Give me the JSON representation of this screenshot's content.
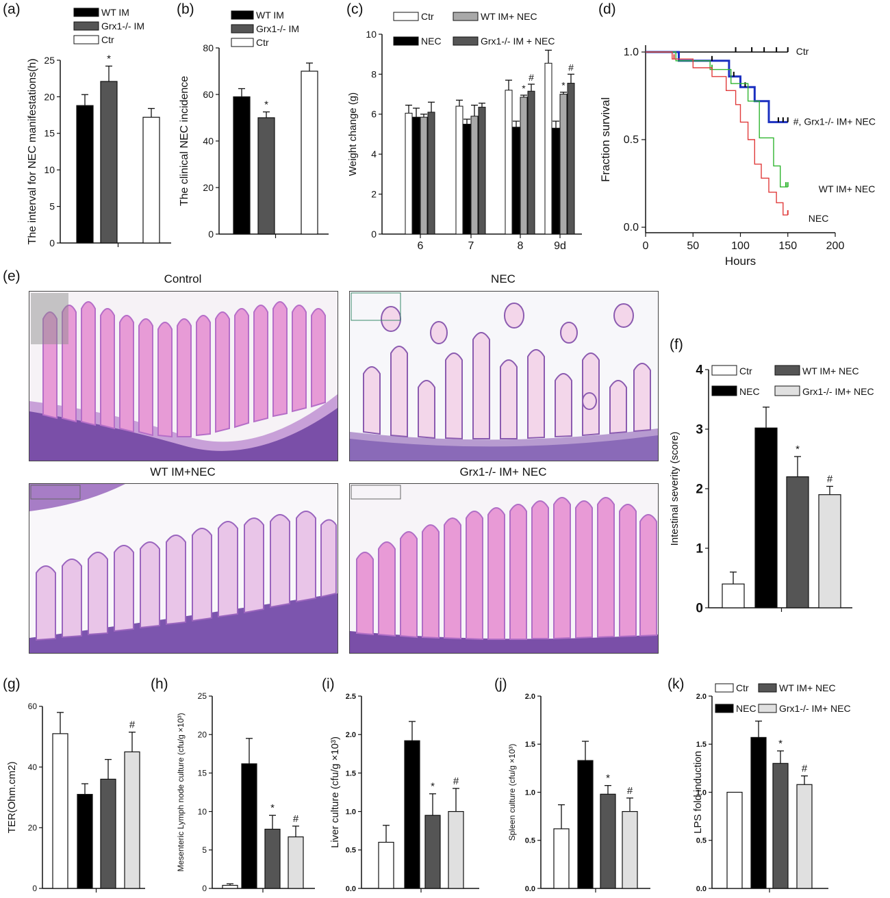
{
  "figure_panels": {
    "letters": [
      "(a)",
      "(b)",
      "(c)",
      "(d)",
      "(e)",
      "(f)",
      "(g)",
      "(h)",
      "(i)",
      "(j)",
      "(k)"
    ],
    "histology": [
      {
        "label": "Control"
      },
      {
        "label": "NEC"
      },
      {
        "label": "WT IM+NEC"
      },
      {
        "label": "Grx1-/- IM+ NEC"
      }
    ]
  },
  "colors": {
    "black": "#000000",
    "dark_gray": "#555555",
    "medium_gray": "#a9a9a9",
    "light_gray": "#e0e0e0",
    "white": "#ffffff",
    "survival_ctr": "#000000",
    "survival_grx": "#1a2fc0",
    "survival_wt": "#2fb52f",
    "survival_nec": "#e03b3b"
  },
  "chart_data": [
    {
      "id": "a",
      "type": "bar",
      "ylabel": "The  interval for NEC manifestations(h)",
      "ylim": [
        0,
        25
      ],
      "yticks": [
        "0",
        "5",
        "10",
        "15",
        "20",
        "25"
      ],
      "legend": [
        "WT IM",
        "Grx1-/- IM",
        "Ctr"
      ],
      "bars": [
        {
          "name": "WT IM",
          "value": 18.8,
          "err": 1.5,
          "color": "black"
        },
        {
          "name": "Grx1-/- IM",
          "value": 22.1,
          "err": 2.1,
          "color": "dark_gray",
          "mark": "*"
        },
        {
          "name": "Ctr",
          "value": 17.2,
          "err": 1.2,
          "color": "white"
        }
      ]
    },
    {
      "id": "b",
      "type": "bar",
      "ylabel": "The clinical NEC incidence",
      "ylim": [
        0,
        80
      ],
      "yticks": [
        "0",
        "20",
        "40",
        "60",
        "80"
      ],
      "legend": [
        "WT IM",
        "Grx1-/- IM",
        "Ctr"
      ],
      "bars": [
        {
          "name": "WT IM",
          "value": 59,
          "err": 3.5,
          "color": "black"
        },
        {
          "name": "Grx1-/- IM",
          "value": 50,
          "err": 2.5,
          "color": "dark_gray",
          "mark": "*"
        },
        {
          "name": "Ctr",
          "value": 70,
          "err": 3.5,
          "color": "white"
        }
      ]
    },
    {
      "id": "c",
      "type": "bar",
      "ylabel": "Weight change (g)",
      "ylim": [
        0,
        10
      ],
      "yticks": [
        "0",
        "2",
        "4",
        "6",
        "8",
        "10"
      ],
      "categories": [
        "6",
        "7",
        "8",
        "9d"
      ],
      "legend": [
        "Ctr",
        "WT IM+ NEC",
        "NEC",
        "Grx1-/- IM + NEC"
      ],
      "series": [
        {
          "name": "Ctr",
          "color": "white",
          "values": [
            6.05,
            6.4,
            7.2,
            8.55
          ],
          "errs": [
            0.4,
            0.3,
            0.5,
            0.65
          ]
        },
        {
          "name": "NEC",
          "color": "black",
          "values": [
            5.85,
            5.5,
            5.35,
            5.3
          ],
          "errs": [
            0.45,
            0.25,
            0.3,
            0.35
          ]
        },
        {
          "name": "WT IM+ NEC",
          "color": "medium_gray",
          "values": [
            5.85,
            5.9,
            6.85,
            7.0
          ],
          "errs": [
            0.15,
            0.55,
            0.1,
            0.1
          ],
          "marks": [
            "",
            "",
            "*",
            "*"
          ]
        },
        {
          "name": "Grx1-/- IM + NEC",
          "color": "dark_gray",
          "values": [
            6.1,
            6.35,
            7.15,
            7.55
          ],
          "errs": [
            0.5,
            0.2,
            0.35,
            0.45
          ],
          "marks": [
            "",
            "",
            "#",
            "#"
          ]
        }
      ]
    },
    {
      "id": "d",
      "type": "line",
      "xlabel": "Hours",
      "ylabel": "Fraction survival",
      "xlim": [
        0,
        200
      ],
      "ylim": [
        0,
        1
      ],
      "xticks": [
        "0",
        "50",
        "100",
        "150",
        "200"
      ],
      "yticks": [
        "0.0",
        "0.5",
        "1.0"
      ],
      "series": [
        {
          "name": "Ctr",
          "color": "survival_ctr",
          "points": [
            [
              0,
              1
            ],
            [
              150,
              1
            ]
          ],
          "censor": [
            95,
            112,
            125,
            138,
            150
          ]
        },
        {
          "name": "#, Grx1-/- IM+ NEC",
          "color": "survival_grx",
          "points": [
            [
              0,
              1
            ],
            [
              35,
              1
            ],
            [
              35,
              0.95
            ],
            [
              88,
              0.95
            ],
            [
              88,
              0.86
            ],
            [
              100,
              0.86
            ],
            [
              100,
              0.8
            ],
            [
              115,
              0.8
            ],
            [
              115,
              0.72
            ],
            [
              130,
              0.72
            ],
            [
              130,
              0.6
            ],
            [
              150,
              0.6
            ]
          ],
          "censor": [
            70,
            93,
            105,
            140,
            145,
            150
          ]
        },
        {
          "name": "WT IM+ NEC",
          "color": "survival_wt",
          "points": [
            [
              0,
              1
            ],
            [
              32,
              1
            ],
            [
              32,
              0.95
            ],
            [
              68,
              0.95
            ],
            [
              68,
              0.9
            ],
            [
              90,
              0.9
            ],
            [
              90,
              0.82
            ],
            [
              108,
              0.82
            ],
            [
              108,
              0.72
            ],
            [
              120,
              0.72
            ],
            [
              120,
              0.51
            ],
            [
              135,
              0.51
            ],
            [
              135,
              0.35
            ],
            [
              142,
              0.35
            ],
            [
              142,
              0.23
            ],
            [
              150,
              0.23
            ]
          ],
          "censor": [
            70,
            148,
            150
          ]
        },
        {
          "name": "NEC",
          "color": "survival_nec",
          "points": [
            [
              0,
              1
            ],
            [
              28,
              1
            ],
            [
              28,
              0.96
            ],
            [
              50,
              0.96
            ],
            [
              50,
              0.91
            ],
            [
              70,
              0.91
            ],
            [
              70,
              0.86
            ],
            [
              85,
              0.86
            ],
            [
              85,
              0.78
            ],
            [
              95,
              0.78
            ],
            [
              95,
              0.7
            ],
            [
              100,
              0.7
            ],
            [
              100,
              0.6
            ],
            [
              108,
              0.6
            ],
            [
              108,
              0.5
            ],
            [
              115,
              0.5
            ],
            [
              115,
              0.36
            ],
            [
              122,
              0.36
            ],
            [
              122,
              0.28
            ],
            [
              130,
              0.28
            ],
            [
              130,
              0.2
            ],
            [
              138,
              0.2
            ],
            [
              138,
              0.14
            ],
            [
              145,
              0.14
            ],
            [
              145,
              0.07
            ],
            [
              150,
              0.07
            ]
          ],
          "censor": [
            30,
            150
          ]
        }
      ]
    },
    {
      "id": "f",
      "type": "bar",
      "ylabel": "Intestinal severity (score)",
      "ylim": [
        0,
        4
      ],
      "yticks": [
        "0",
        "1",
        "2",
        "3",
        "4"
      ],
      "legend": [
        "Ctr",
        "WT IM+ NEC",
        "NEC",
        "Grx1-/- IM+ NEC"
      ],
      "bars": [
        {
          "name": "Ctr",
          "value": 0.4,
          "err": 0.2,
          "color": "white"
        },
        {
          "name": "NEC",
          "value": 3.02,
          "err": 0.35,
          "color": "black"
        },
        {
          "name": "WT IM+ NEC",
          "value": 2.2,
          "err": 0.34,
          "color": "dark_gray",
          "mark": "*"
        },
        {
          "name": "Grx1-/- IM+ NEC",
          "value": 1.9,
          "err": 0.14,
          "color": "light_gray",
          "mark": "#"
        }
      ]
    },
    {
      "id": "g",
      "type": "bar",
      "ylabel": "TER(Ohm.cm2)",
      "ylim": [
        0,
        60
      ],
      "yticks": [
        "0",
        "20",
        "40",
        "60"
      ],
      "bars": [
        {
          "name": "Ctr",
          "value": 51,
          "err": 7,
          "color": "white"
        },
        {
          "name": "NEC",
          "value": 31,
          "err": 3.5,
          "color": "black"
        },
        {
          "name": "WT IM+ NEC",
          "value": 36,
          "err": 6.5,
          "color": "dark_gray"
        },
        {
          "name": "Grx1-/- IM+ NEC",
          "value": 45,
          "err": 6.5,
          "color": "light_gray",
          "mark": "#"
        }
      ]
    },
    {
      "id": "h",
      "type": "bar",
      "ylabel": "Mesenteric Lymph node culture (cfu/g ×10³)",
      "ylim": [
        0,
        25
      ],
      "yticks": [
        "0",
        "5",
        "10",
        "15",
        "20",
        "25"
      ],
      "bars": [
        {
          "name": "Ctr",
          "value": 0.4,
          "err": 0.2,
          "color": "white"
        },
        {
          "name": "NEC",
          "value": 16.2,
          "err": 3.3,
          "color": "black"
        },
        {
          "name": "WT IM+ NEC",
          "value": 7.7,
          "err": 1.8,
          "color": "dark_gray",
          "mark": "*"
        },
        {
          "name": "Grx1-/- IM+ NEC",
          "value": 6.7,
          "err": 1.4,
          "color": "light_gray",
          "mark": "#"
        }
      ]
    },
    {
      "id": "i",
      "type": "bar",
      "ylabel": "Liver culture (cfu/g ×10³)",
      "ylim": [
        0,
        2.5
      ],
      "yticks": [
        "0.0",
        "0.5",
        "1.0",
        "1.5",
        "2.0",
        "2.5"
      ],
      "bars": [
        {
          "name": "Ctr",
          "value": 0.6,
          "err": 0.22,
          "color": "white"
        },
        {
          "name": "NEC",
          "value": 1.92,
          "err": 0.25,
          "color": "black"
        },
        {
          "name": "WT IM+ NEC",
          "value": 0.95,
          "err": 0.28,
          "color": "dark_gray",
          "mark": "*"
        },
        {
          "name": "Grx1-/- IM+ NEC",
          "value": 1.0,
          "err": 0.3,
          "color": "light_gray",
          "mark": "#"
        }
      ]
    },
    {
      "id": "j",
      "type": "bar",
      "ylabel": "Spleen culture (cfu/g ×10³)",
      "ylim": [
        0,
        2.0
      ],
      "yticks": [
        "0.0",
        "0.5",
        "1.0",
        "1.5",
        "2.0"
      ],
      "bars": [
        {
          "name": "Ctr",
          "value": 0.62,
          "err": 0.25,
          "color": "white"
        },
        {
          "name": "NEC",
          "value": 1.33,
          "err": 0.2,
          "color": "black"
        },
        {
          "name": "WT IM+ NEC",
          "value": 0.98,
          "err": 0.09,
          "color": "dark_gray",
          "mark": "*"
        },
        {
          "name": "Grx1-/- IM+ NEC",
          "value": 0.8,
          "err": 0.14,
          "color": "light_gray",
          "mark": "#"
        }
      ]
    },
    {
      "id": "k",
      "type": "bar",
      "ylabel": "LPS fold induction",
      "ylim": [
        0,
        2.0
      ],
      "yticks": [
        "0.0",
        "0.5",
        "1.0",
        "1.5",
        "2.0"
      ],
      "legend": [
        "Ctr",
        "WT IM+ NEC",
        "NEC",
        "Grx1-/- IM+ NEC"
      ],
      "bars": [
        {
          "name": "Ctr",
          "value": 1.0,
          "err": 0,
          "color": "white"
        },
        {
          "name": "NEC",
          "value": 1.57,
          "err": 0.17,
          "color": "black"
        },
        {
          "name": "WT IM+ NEC",
          "value": 1.3,
          "err": 0.13,
          "color": "dark_gray",
          "mark": "*"
        },
        {
          "name": "Grx1-/- IM+ NEC",
          "value": 1.08,
          "err": 0.09,
          "color": "light_gray",
          "mark": "#"
        }
      ]
    }
  ]
}
